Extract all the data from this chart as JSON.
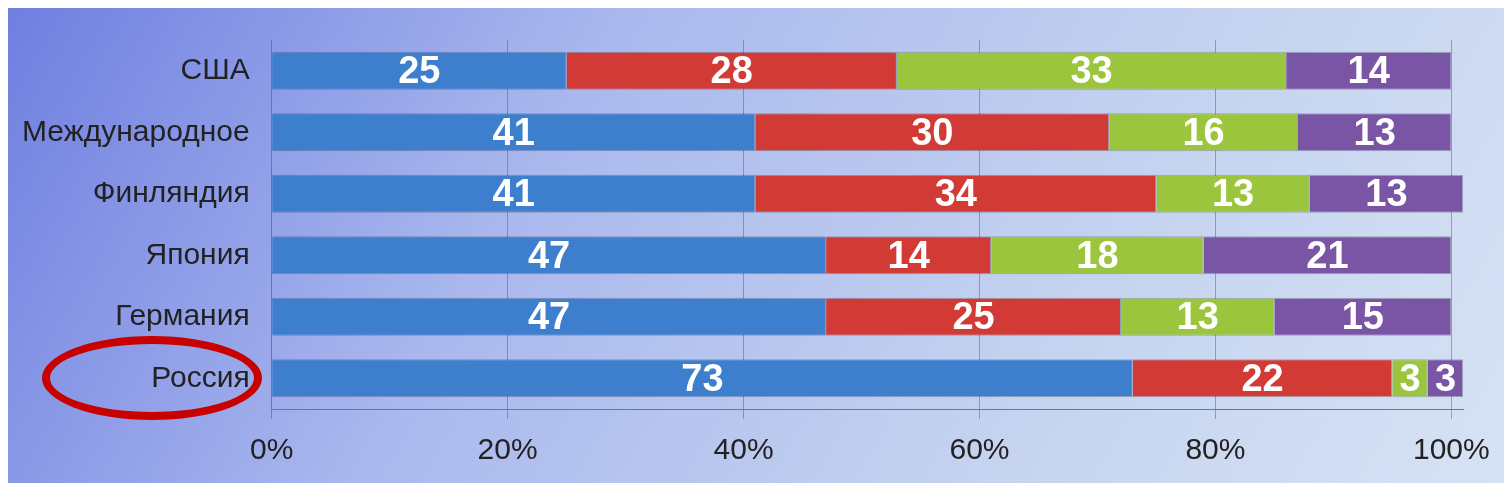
{
  "chart_data": {
    "type": "bar",
    "orientation": "horizontal",
    "stacked": true,
    "categories": [
      "США",
      "Международное",
      "Финляндия",
      "Япония",
      "Германия",
      "Россия"
    ],
    "series": [
      {
        "color": "#3d7fcc",
        "values": [
          25,
          41,
          41,
          47,
          47,
          73
        ]
      },
      {
        "color": "#d23a35",
        "values": [
          28,
          30,
          34,
          14,
          25,
          22
        ]
      },
      {
        "color": "#9bc53d",
        "values": [
          33,
          16,
          13,
          18,
          13,
          3
        ]
      },
      {
        "color": "#7a55a5",
        "values": [
          14,
          13,
          13,
          21,
          15,
          3
        ]
      }
    ],
    "data_labels": true,
    "xlim": [
      0,
      101
    ],
    "xticks": [
      {
        "value": 0,
        "label": "0%"
      },
      {
        "value": 20,
        "label": "20%"
      },
      {
        "value": 40,
        "label": "40%"
      },
      {
        "value": 60,
        "label": "60%"
      },
      {
        "value": 80,
        "label": "80%"
      },
      {
        "value": 100,
        "label": "100%"
      }
    ],
    "grid": "x",
    "legend": false
  }
}
